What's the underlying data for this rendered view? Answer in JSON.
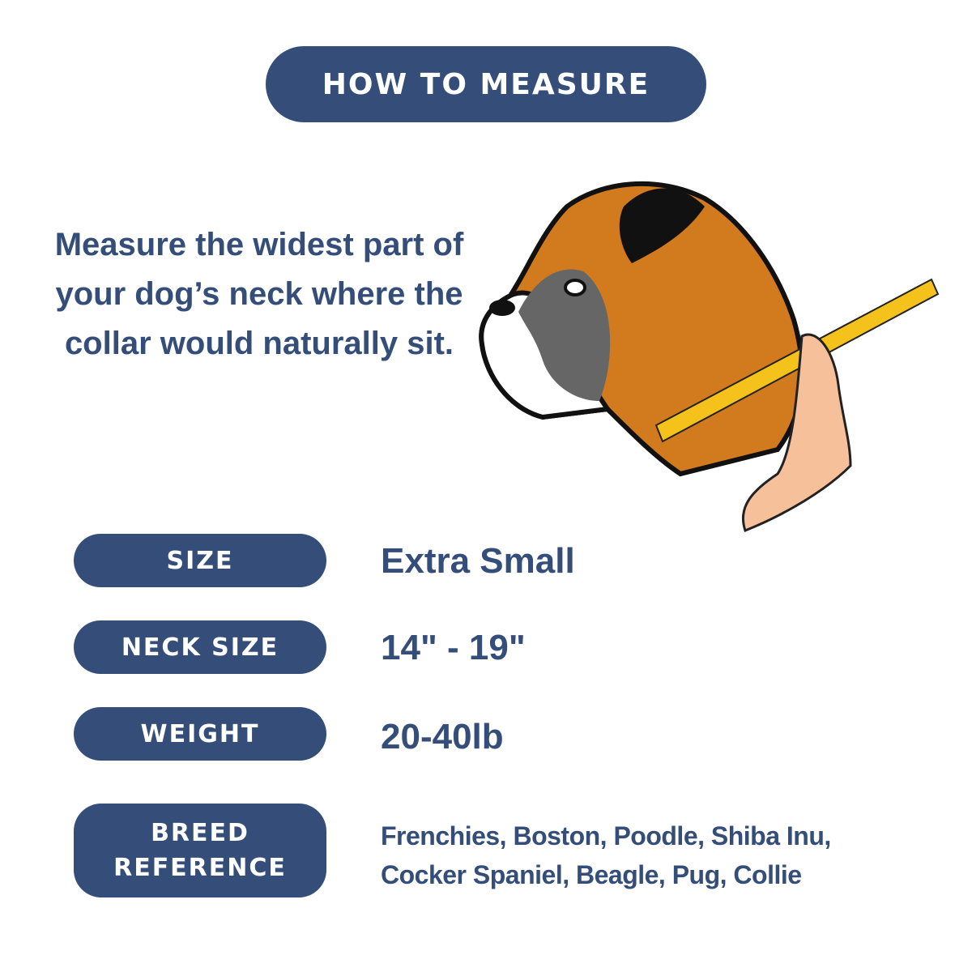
{
  "header": {
    "title": "HOW TO MEASURE"
  },
  "intro": {
    "text": "Measure the widest part of your dog’s neck where the collar would naturally sit."
  },
  "illustration": {
    "icon": "boxer-dog-measuring-tape-icon"
  },
  "rows": [
    {
      "label": "SIZE",
      "value": "Extra Small"
    },
    {
      "label": "NECK SIZE",
      "value": "14\" - 19\""
    },
    {
      "label": "WEIGHT",
      "value": "20-40lb"
    },
    {
      "label": "BREED REFERENCE",
      "value": "Frenchies, Boston, Poodle, Shiba Inu, Cocker Spaniel, Beagle, Pug, Collie"
    }
  ],
  "colors": {
    "accent": "#344e79",
    "background": "#ffffff"
  }
}
